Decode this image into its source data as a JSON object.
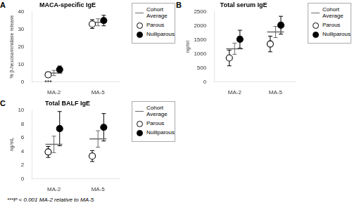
{
  "chart_data": [
    {
      "type": "errorbar",
      "panel_label": "A",
      "title": "MACA-specific IgE",
      "y_label": "% β-hexosaminidase release",
      "categories": [
        "MA-2",
        "MA-5"
      ],
      "series": [
        {
          "name": "Cohort\nAverage",
          "color": "#696969",
          "marker": "line",
          "values": [
            5.0,
            34.0
          ],
          "errors": [
            1.5,
            2.0
          ]
        },
        {
          "name": "Parous",
          "color": "#000000",
          "marker": "open_circle",
          "values": [
            4.0,
            33.0
          ],
          "errors": [
            1.5,
            2.5
          ]
        },
        {
          "name": "Nulliparous",
          "color": "#000000",
          "marker": "circle",
          "values": [
            7.0,
            35.0
          ],
          "errors": [
            2.0,
            3.0
          ]
        }
      ],
      "ylim": [
        0,
        40
      ],
      "yticks": [
        0,
        10,
        20,
        30,
        40
      ],
      "grid": false,
      "annotations": [
        {
          "text": "***",
          "category": "MA-2",
          "series": "Parous",
          "y": 1.5
        }
      ]
    },
    {
      "type": "errorbar",
      "panel_label": "B",
      "title": "Total serum IgE",
      "y_label": "ng/ml",
      "categories": [
        "MA-2",
        "MA-5"
      ],
      "series": [
        {
          "name": "Cohort\nAverage",
          "color": "#696969",
          "marker": "line",
          "values": [
            1180,
            1780
          ],
          "errors": [
            200,
            200
          ]
        },
        {
          "name": "Parous",
          "color": "#000000",
          "marker": "open_circle",
          "values": [
            850,
            1350
          ],
          "errors": [
            280,
            280
          ]
        },
        {
          "name": "Nulliparous",
          "color": "#000000",
          "marker": "circle",
          "values": [
            1520,
            2020
          ],
          "errors": [
            320,
            320
          ]
        }
      ],
      "ylim": [
        0,
        2500
      ],
      "yticks": [
        0,
        500,
        1000,
        1500,
        2000,
        2500
      ],
      "grid": false
    },
    {
      "type": "errorbar",
      "panel_label": "C",
      "title": "Total BALF IgE",
      "y_label": "ng/mL",
      "categories": [
        "MA-2",
        "MA-5"
      ],
      "series": [
        {
          "name": "Cohort\nAverage",
          "color": "#696969",
          "marker": "line",
          "values": [
            5.0,
            5.8
          ],
          "errors": [
            1.2,
            1.2
          ]
        },
        {
          "name": "Parous",
          "color": "#000000",
          "marker": "open_circle",
          "values": [
            3.9,
            3.3
          ],
          "errors": [
            0.8,
            0.8
          ]
        },
        {
          "name": "Nulliparous",
          "color": "#000000",
          "marker": "circle",
          "values": [
            7.3,
            7.5
          ],
          "errors": [
            2.5,
            2.0
          ]
        }
      ],
      "ylim": [
        0,
        10
      ],
      "yticks": [
        0,
        2,
        4,
        6,
        8,
        10
      ],
      "grid": false
    }
  ],
  "footnote": "***P < 0.001 MA-2 relative to MA-5"
}
